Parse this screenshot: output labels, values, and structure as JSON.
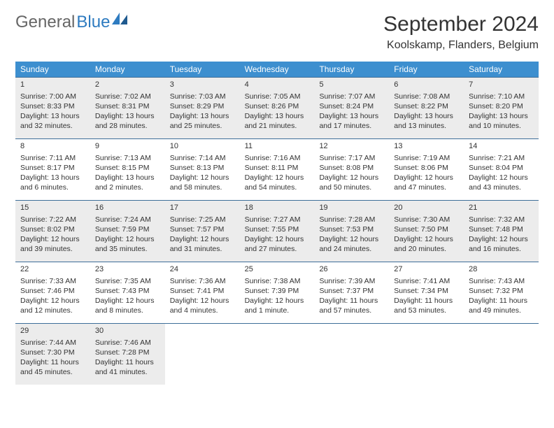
{
  "logo": {
    "part1": "General",
    "part2": "Blue"
  },
  "title": "September 2024",
  "location": "Koolskamp, Flanders, Belgium",
  "colors": {
    "header_bg": "#3d8fcf",
    "header_text": "#ffffff",
    "row_border": "#3d6e99",
    "shaded_bg": "#ececec",
    "body_text": "#333333",
    "logo_gray": "#666666",
    "logo_blue": "#2e7bc0"
  },
  "day_headers": [
    "Sunday",
    "Monday",
    "Tuesday",
    "Wednesday",
    "Thursday",
    "Friday",
    "Saturday"
  ],
  "weeks": [
    {
      "shaded": true,
      "cells": [
        {
          "n": "1",
          "sr": "Sunrise: 7:00 AM",
          "ss": "Sunset: 8:33 PM",
          "dl": "Daylight: 13 hours and 32 minutes."
        },
        {
          "n": "2",
          "sr": "Sunrise: 7:02 AM",
          "ss": "Sunset: 8:31 PM",
          "dl": "Daylight: 13 hours and 28 minutes."
        },
        {
          "n": "3",
          "sr": "Sunrise: 7:03 AM",
          "ss": "Sunset: 8:29 PM",
          "dl": "Daylight: 13 hours and 25 minutes."
        },
        {
          "n": "4",
          "sr": "Sunrise: 7:05 AM",
          "ss": "Sunset: 8:26 PM",
          "dl": "Daylight: 13 hours and 21 minutes."
        },
        {
          "n": "5",
          "sr": "Sunrise: 7:07 AM",
          "ss": "Sunset: 8:24 PM",
          "dl": "Daylight: 13 hours and 17 minutes."
        },
        {
          "n": "6",
          "sr": "Sunrise: 7:08 AM",
          "ss": "Sunset: 8:22 PM",
          "dl": "Daylight: 13 hours and 13 minutes."
        },
        {
          "n": "7",
          "sr": "Sunrise: 7:10 AM",
          "ss": "Sunset: 8:20 PM",
          "dl": "Daylight: 13 hours and 10 minutes."
        }
      ]
    },
    {
      "shaded": false,
      "cells": [
        {
          "n": "8",
          "sr": "Sunrise: 7:11 AM",
          "ss": "Sunset: 8:17 PM",
          "dl": "Daylight: 13 hours and 6 minutes."
        },
        {
          "n": "9",
          "sr": "Sunrise: 7:13 AM",
          "ss": "Sunset: 8:15 PM",
          "dl": "Daylight: 13 hours and 2 minutes."
        },
        {
          "n": "10",
          "sr": "Sunrise: 7:14 AM",
          "ss": "Sunset: 8:13 PM",
          "dl": "Daylight: 12 hours and 58 minutes."
        },
        {
          "n": "11",
          "sr": "Sunrise: 7:16 AM",
          "ss": "Sunset: 8:11 PM",
          "dl": "Daylight: 12 hours and 54 minutes."
        },
        {
          "n": "12",
          "sr": "Sunrise: 7:17 AM",
          "ss": "Sunset: 8:08 PM",
          "dl": "Daylight: 12 hours and 50 minutes."
        },
        {
          "n": "13",
          "sr": "Sunrise: 7:19 AM",
          "ss": "Sunset: 8:06 PM",
          "dl": "Daylight: 12 hours and 47 minutes."
        },
        {
          "n": "14",
          "sr": "Sunrise: 7:21 AM",
          "ss": "Sunset: 8:04 PM",
          "dl": "Daylight: 12 hours and 43 minutes."
        }
      ]
    },
    {
      "shaded": true,
      "cells": [
        {
          "n": "15",
          "sr": "Sunrise: 7:22 AM",
          "ss": "Sunset: 8:02 PM",
          "dl": "Daylight: 12 hours and 39 minutes."
        },
        {
          "n": "16",
          "sr": "Sunrise: 7:24 AM",
          "ss": "Sunset: 7:59 PM",
          "dl": "Daylight: 12 hours and 35 minutes."
        },
        {
          "n": "17",
          "sr": "Sunrise: 7:25 AM",
          "ss": "Sunset: 7:57 PM",
          "dl": "Daylight: 12 hours and 31 minutes."
        },
        {
          "n": "18",
          "sr": "Sunrise: 7:27 AM",
          "ss": "Sunset: 7:55 PM",
          "dl": "Daylight: 12 hours and 27 minutes."
        },
        {
          "n": "19",
          "sr": "Sunrise: 7:28 AM",
          "ss": "Sunset: 7:53 PM",
          "dl": "Daylight: 12 hours and 24 minutes."
        },
        {
          "n": "20",
          "sr": "Sunrise: 7:30 AM",
          "ss": "Sunset: 7:50 PM",
          "dl": "Daylight: 12 hours and 20 minutes."
        },
        {
          "n": "21",
          "sr": "Sunrise: 7:32 AM",
          "ss": "Sunset: 7:48 PM",
          "dl": "Daylight: 12 hours and 16 minutes."
        }
      ]
    },
    {
      "shaded": false,
      "cells": [
        {
          "n": "22",
          "sr": "Sunrise: 7:33 AM",
          "ss": "Sunset: 7:46 PM",
          "dl": "Daylight: 12 hours and 12 minutes."
        },
        {
          "n": "23",
          "sr": "Sunrise: 7:35 AM",
          "ss": "Sunset: 7:43 PM",
          "dl": "Daylight: 12 hours and 8 minutes."
        },
        {
          "n": "24",
          "sr": "Sunrise: 7:36 AM",
          "ss": "Sunset: 7:41 PM",
          "dl": "Daylight: 12 hours and 4 minutes."
        },
        {
          "n": "25",
          "sr": "Sunrise: 7:38 AM",
          "ss": "Sunset: 7:39 PM",
          "dl": "Daylight: 12 hours and 1 minute."
        },
        {
          "n": "26",
          "sr": "Sunrise: 7:39 AM",
          "ss": "Sunset: 7:37 PM",
          "dl": "Daylight: 11 hours and 57 minutes."
        },
        {
          "n": "27",
          "sr": "Sunrise: 7:41 AM",
          "ss": "Sunset: 7:34 PM",
          "dl": "Daylight: 11 hours and 53 minutes."
        },
        {
          "n": "28",
          "sr": "Sunrise: 7:43 AM",
          "ss": "Sunset: 7:32 PM",
          "dl": "Daylight: 11 hours and 49 minutes."
        }
      ]
    },
    {
      "shaded": true,
      "cells": [
        {
          "n": "29",
          "sr": "Sunrise: 7:44 AM",
          "ss": "Sunset: 7:30 PM",
          "dl": "Daylight: 11 hours and 45 minutes."
        },
        {
          "n": "30",
          "sr": "Sunrise: 7:46 AM",
          "ss": "Sunset: 7:28 PM",
          "dl": "Daylight: 11 hours and 41 minutes."
        },
        {
          "empty": true
        },
        {
          "empty": true
        },
        {
          "empty": true
        },
        {
          "empty": true
        },
        {
          "empty": true
        }
      ]
    }
  ]
}
